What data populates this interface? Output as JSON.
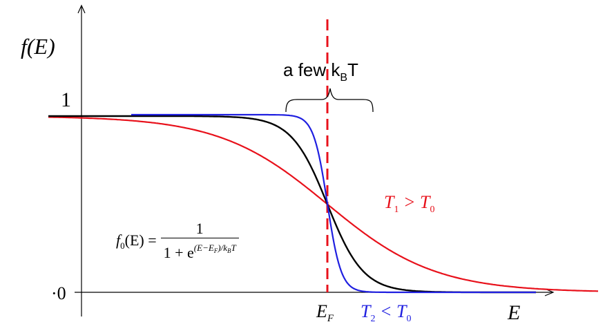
{
  "diagram": {
    "y_axis_label": "f(E)",
    "x_axis_label": "E",
    "tick_one": "1",
    "tick_zero": "·0",
    "fermi_label": "E",
    "fermi_sub": "F",
    "brace_label": "a few k",
    "brace_sub": "B",
    "brace_tail": "T",
    "hot_label": "T",
    "hot_sub": "1",
    "hot_rel": " > T",
    "hot_sub2": "0",
    "cold_label": "T",
    "cold_sub": "2",
    "cold_rel": " < T",
    "cold_sub2": "0",
    "formula_lhs": "f",
    "formula_lhs_sub": "0",
    "formula_arg": "(E) =",
    "formula_num": "1",
    "formula_den": "1 + e",
    "formula_exp": "(E−E",
    "formula_exp_sub": "F",
    "formula_exp_tail": ")/k",
    "formula_exp_sub2": "B",
    "formula_exp_end": "T",
    "colors": {
      "hot": "#e8111b",
      "cold": "#1f1fe0",
      "base": "#000000",
      "fermi_line": "#e8111b"
    }
  }
}
